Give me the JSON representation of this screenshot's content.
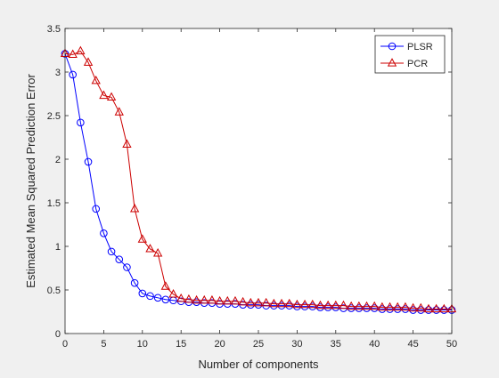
{
  "chart_data": {
    "type": "line",
    "title": "",
    "xlabel": "Number of components",
    "ylabel": "Estimated Mean Squared Prediction Error",
    "xlim": [
      0,
      50
    ],
    "ylim": [
      0,
      3.5
    ],
    "xticks": [
      0,
      5,
      10,
      15,
      20,
      25,
      30,
      35,
      40,
      45,
      50
    ],
    "yticks": [
      0,
      0.5,
      1,
      1.5,
      2,
      2.5,
      3,
      3.5
    ],
    "xtick_labels": [
      "0",
      "5",
      "10",
      "15",
      "20",
      "25",
      "30",
      "35",
      "40",
      "45",
      "50"
    ],
    "ytick_labels": [
      "0",
      "0.5",
      "1",
      "1.5",
      "2",
      "2.5",
      "3",
      "3.5"
    ],
    "grid": false,
    "legend_position": "top-right",
    "x": [
      0,
      1,
      2,
      3,
      4,
      5,
      6,
      7,
      8,
      9,
      10,
      11,
      12,
      13,
      14,
      15,
      16,
      17,
      18,
      19,
      20,
      21,
      22,
      23,
      24,
      25,
      26,
      27,
      28,
      29,
      30,
      31,
      32,
      33,
      34,
      35,
      36,
      37,
      38,
      39,
      40,
      41,
      42,
      43,
      44,
      45,
      46,
      47,
      48,
      49,
      50
    ],
    "series": [
      {
        "name": "PLSR",
        "color": "#0000ff",
        "marker": "circle",
        "values": [
          3.21,
          2.97,
          2.42,
          1.97,
          1.43,
          1.15,
          0.94,
          0.85,
          0.76,
          0.58,
          0.46,
          0.43,
          0.41,
          0.39,
          0.38,
          0.37,
          0.36,
          0.36,
          0.35,
          0.35,
          0.34,
          0.34,
          0.34,
          0.33,
          0.33,
          0.33,
          0.32,
          0.32,
          0.32,
          0.32,
          0.31,
          0.31,
          0.31,
          0.3,
          0.3,
          0.3,
          0.29,
          0.29,
          0.29,
          0.29,
          0.29,
          0.28,
          0.28,
          0.28,
          0.28,
          0.27,
          0.27,
          0.27,
          0.27,
          0.27,
          0.27
        ]
      },
      {
        "name": "PCR",
        "color": "#cc0000",
        "marker": "triangle",
        "values": [
          3.21,
          3.2,
          3.24,
          3.11,
          2.9,
          2.73,
          2.71,
          2.54,
          2.17,
          1.43,
          1.08,
          0.97,
          0.92,
          0.54,
          0.45,
          0.4,
          0.39,
          0.38,
          0.38,
          0.38,
          0.37,
          0.37,
          0.37,
          0.36,
          0.35,
          0.35,
          0.35,
          0.34,
          0.34,
          0.34,
          0.33,
          0.33,
          0.33,
          0.32,
          0.32,
          0.32,
          0.32,
          0.31,
          0.31,
          0.31,
          0.31,
          0.3,
          0.3,
          0.3,
          0.3,
          0.29,
          0.29,
          0.28,
          0.28,
          0.28,
          0.28
        ]
      }
    ]
  }
}
